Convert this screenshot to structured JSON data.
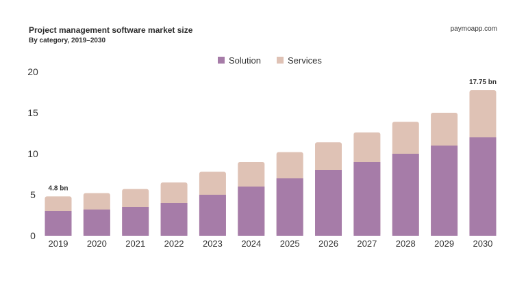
{
  "chart_data": {
    "type": "bar",
    "stacked": true,
    "title": "Project management software market size",
    "subtitle": "By category, 2019–2030",
    "source": "paymoapp.com",
    "xlabel": "",
    "ylabel": "",
    "ylim": [
      0,
      20
    ],
    "yticks": [
      0,
      5,
      10,
      15,
      20
    ],
    "grid": false,
    "legend": "top-center",
    "categories": [
      "2019",
      "2020",
      "2021",
      "2022",
      "2023",
      "2024",
      "2025",
      "2026",
      "2027",
      "2028",
      "2029",
      "2030"
    ],
    "series": [
      {
        "name": "Solution",
        "color": "#a67ca8",
        "values": [
          3.0,
          3.2,
          3.5,
          4.0,
          5.0,
          6.0,
          7.0,
          8.0,
          9.0,
          10.0,
          11.0,
          12.0
        ]
      },
      {
        "name": "Services",
        "color": "#dfc2b5",
        "values": [
          1.8,
          2.0,
          2.2,
          2.5,
          2.8,
          3.0,
          3.2,
          3.4,
          3.6,
          3.9,
          4.0,
          5.75
        ]
      }
    ],
    "annotations": [
      {
        "category": "2019",
        "text": "4.8 bn"
      },
      {
        "category": "2030",
        "text": "17.75 bn"
      }
    ]
  }
}
